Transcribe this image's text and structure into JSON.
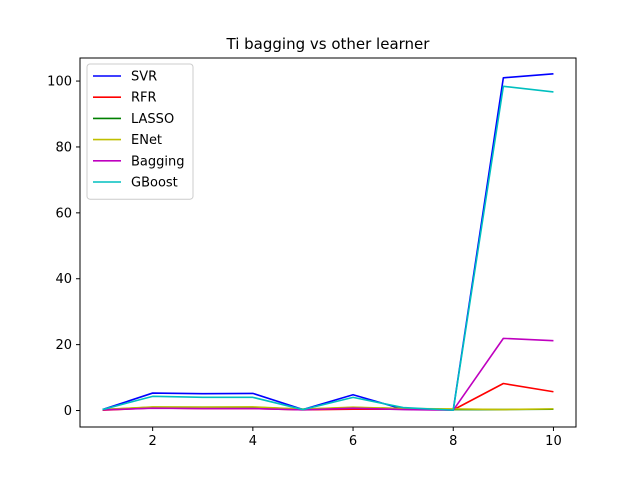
{
  "chart_data": {
    "type": "line",
    "title": "Ti bagging vs other learner",
    "xlabel": "",
    "ylabel": "",
    "x": [
      1,
      2,
      3,
      4,
      5,
      6,
      7,
      8,
      9,
      10
    ],
    "xlim": [
      0.55,
      10.45
    ],
    "ylim": [
      -5,
      107
    ],
    "xticks": [
      2,
      4,
      6,
      8,
      10
    ],
    "yticks": [
      0,
      20,
      40,
      60,
      80,
      100
    ],
    "grid": false,
    "legend_position": "upper-left",
    "series": [
      {
        "name": "SVR",
        "color": "#0000ff",
        "values": [
          0.3,
          5.3,
          5.1,
          5.2,
          0.3,
          4.8,
          0.4,
          0.2,
          101.0,
          102.2
        ]
      },
      {
        "name": "RFR",
        "color": "#ff0000",
        "values": [
          0.1,
          0.8,
          0.6,
          0.6,
          0.2,
          0.4,
          0.4,
          0.2,
          8.2,
          5.7
        ]
      },
      {
        "name": "LASSO",
        "color": "#008000",
        "values": [
          0.3,
          1.0,
          1.0,
          1.0,
          0.4,
          0.9,
          0.6,
          0.3,
          0.3,
          0.4
        ]
      },
      {
        "name": "ENet",
        "color": "#bfbf00",
        "values": [
          0.3,
          1.1,
          1.0,
          1.1,
          0.4,
          1.0,
          0.6,
          0.5,
          0.3,
          0.5
        ]
      },
      {
        "name": "Bagging",
        "color": "#bf00bf",
        "values": [
          0.2,
          0.7,
          0.6,
          0.6,
          0.2,
          0.7,
          0.3,
          0.1,
          21.9,
          21.2
        ]
      },
      {
        "name": "GBoost",
        "color": "#00bfbf",
        "values": [
          0.3,
          4.3,
          4.0,
          4.0,
          0.3,
          4.0,
          0.9,
          0.1,
          98.4,
          96.7
        ]
      }
    ]
  }
}
